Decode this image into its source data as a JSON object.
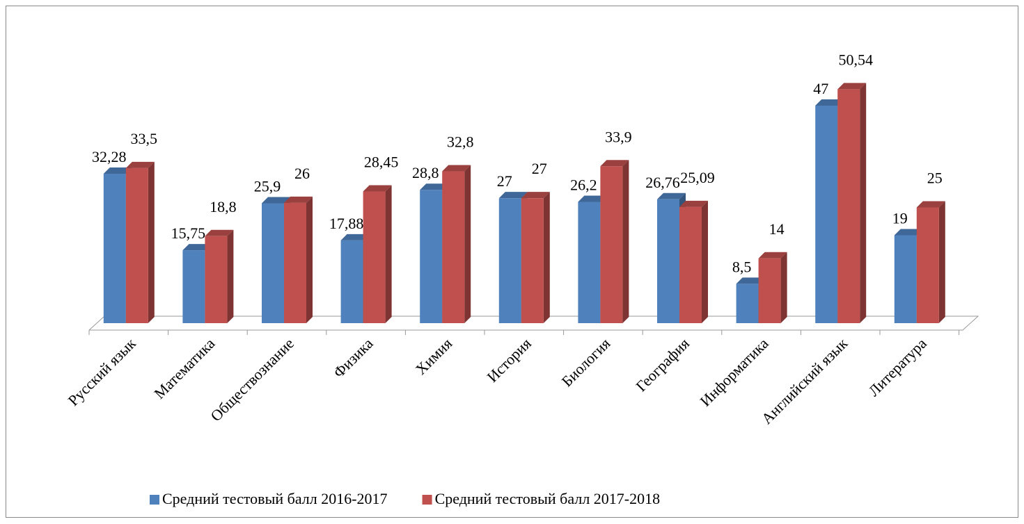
{
  "chart_data": {
    "type": "bar3d",
    "categories": [
      "Русский язык",
      "Математика",
      "Обществознание",
      "Физика",
      "Химия",
      "История",
      "Биология",
      "География",
      "Информатика",
      "Английский язык",
      "Литература"
    ],
    "series": [
      {
        "name": "Средний тестовый балл 2016-2017",
        "color": "#4f81bd",
        "values": [
          32.28,
          15.75,
          25.9,
          17.88,
          28.8,
          27,
          26.2,
          26.76,
          8.5,
          47,
          19
        ],
        "value_labels": [
          "32,28",
          "15,75",
          "25,9",
          "17,88",
          "28,8",
          "27",
          "26,2",
          "26,76",
          "8,5",
          "47",
          "19"
        ]
      },
      {
        "name": "Средний тестовый балл 2017-2018",
        "color": "#c0504d",
        "values": [
          33.5,
          18.8,
          26,
          28.45,
          32.8,
          27,
          33.9,
          25.09,
          14,
          50.54,
          25
        ],
        "value_labels": [
          "33,5",
          "18,8",
          "26",
          "28,45",
          "32,8",
          "27",
          "33,9",
          "25,09",
          "14",
          "50,54",
          "25"
        ]
      }
    ],
    "ylim": [
      0,
      50
    ],
    "legend": "bottom"
  }
}
